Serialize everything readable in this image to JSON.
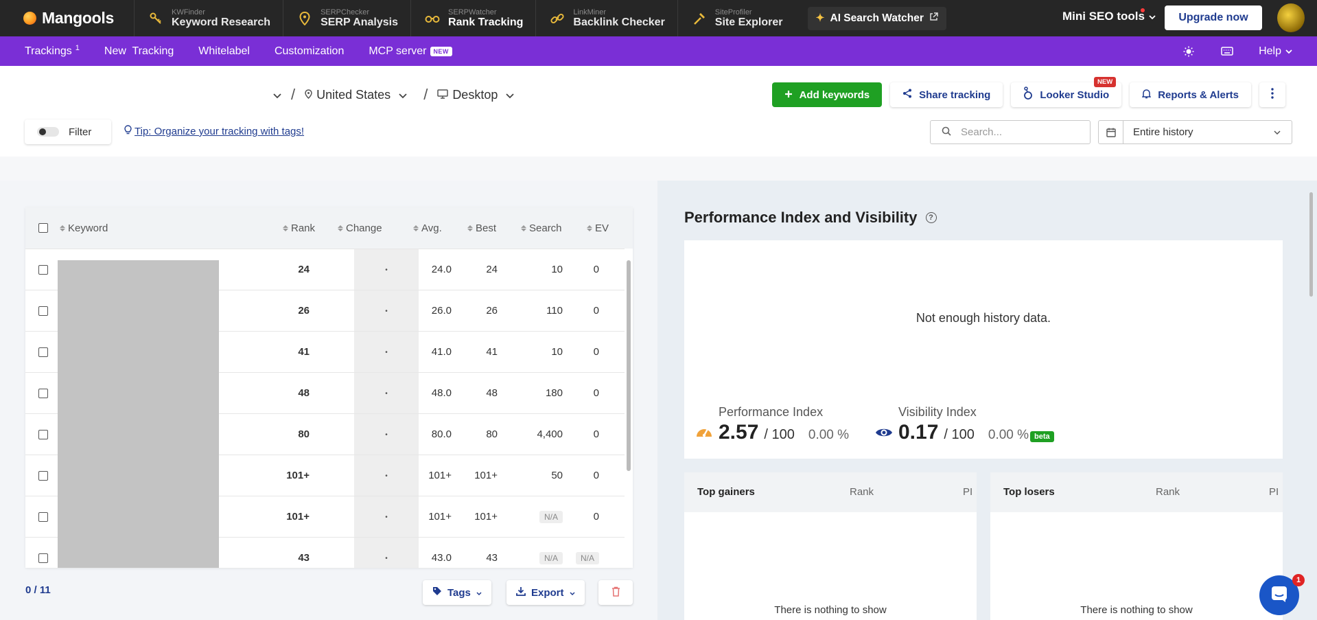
{
  "brand": {
    "name": "Mangools"
  },
  "tools": [
    {
      "sub": "KWFinder",
      "main": "Keyword Research",
      "icon": "key-icon"
    },
    {
      "sub": "SERPChecker",
      "main": "SERP Analysis",
      "icon": "map-pin-icon"
    },
    {
      "sub": "SERPWatcher",
      "main": "Rank Tracking",
      "icon": "binoculars-icon"
    },
    {
      "sub": "LinkMiner",
      "main": "Backlink Checker",
      "icon": "link-icon"
    },
    {
      "sub": "SiteProfiler",
      "main": "Site Explorer",
      "icon": "hammer-icon"
    }
  ],
  "ai_watcher": {
    "label": "AI Search Watcher"
  },
  "mini_seo": {
    "label": "Mini SEO tools"
  },
  "upgrade": {
    "label": "Upgrade now"
  },
  "subnav": {
    "trackings": "Trackings",
    "trackings_count": "1",
    "new_tracking": "New  Tracking",
    "whitelabel": "Whitelabel",
    "customization": "Customization",
    "mcp": "MCP server",
    "mcp_badge": "NEW",
    "help": "Help"
  },
  "location": {
    "country": "United States",
    "device": "Desktop",
    "sep1": "/",
    "sep2": "/"
  },
  "actions": {
    "add_keywords": "Add keywords",
    "share": "Share tracking",
    "looker": "Looker Studio",
    "looker_badge": "NEW",
    "reports": "Reports & Alerts"
  },
  "filter": {
    "label": "Filter"
  },
  "tip": {
    "text": "Tip: Organize your tracking with tags!"
  },
  "search": {
    "placeholder": "Search..."
  },
  "date_range": {
    "value": "Entire history"
  },
  "table": {
    "headers": {
      "keyword": "Keyword",
      "rank": "Rank",
      "change": "Change",
      "avg": "Avg.",
      "best": "Best",
      "search": "Search",
      "ev": "EV"
    },
    "rows": [
      {
        "rank": "24",
        "change": "•",
        "avg": "24.0",
        "best": "24",
        "search": "10",
        "ev": "0"
      },
      {
        "rank": "26",
        "change": "•",
        "avg": "26.0",
        "best": "26",
        "search": "110",
        "ev": "0"
      },
      {
        "rank": "41",
        "change": "•",
        "avg": "41.0",
        "best": "41",
        "search": "10",
        "ev": "0"
      },
      {
        "rank": "48",
        "change": "•",
        "avg": "48.0",
        "best": "48",
        "search": "180",
        "ev": "0"
      },
      {
        "rank": "80",
        "change": "•",
        "avg": "80.0",
        "best": "80",
        "search": "4,400",
        "ev": "0"
      },
      {
        "rank": "101+",
        "change": "•",
        "avg": "101+",
        "best": "101+",
        "search": "50",
        "ev": "0"
      },
      {
        "rank": "101+",
        "change": "•",
        "avg": "101+",
        "best": "101+",
        "search": "N/A",
        "ev": "0"
      },
      {
        "rank": "43",
        "change": "•",
        "avg": "43.0",
        "best": "43",
        "search": "N/A",
        "ev": "N/A"
      }
    ]
  },
  "selection": {
    "count": "0 / 11"
  },
  "bottom": {
    "tags": "Tags",
    "export": "Export"
  },
  "performance": {
    "title": "Performance Index and Visibility",
    "help": "?",
    "empty": "Not enough history data.",
    "pi_label": "Performance Index",
    "pi_value": "2.57",
    "pi_of": "/ 100",
    "pi_change": "0.00 %",
    "vi_label": "Visibility Index",
    "vi_value": "0.17",
    "vi_of": "/ 100",
    "vi_change": "0.00 %",
    "beta": "beta"
  },
  "gainers": {
    "title": "Top gainers",
    "rank": "Rank",
    "pi": "PI",
    "empty": "There is nothing to show"
  },
  "losers": {
    "title": "Top losers",
    "rank": "Rank",
    "pi": "PI",
    "empty": "There is nothing to show"
  },
  "chat": {
    "badge": "1"
  },
  "colors": {
    "purple": "#7a2fd6",
    "green": "#1fa023",
    "link": "#1f3b8f",
    "topbar": "#262626"
  }
}
